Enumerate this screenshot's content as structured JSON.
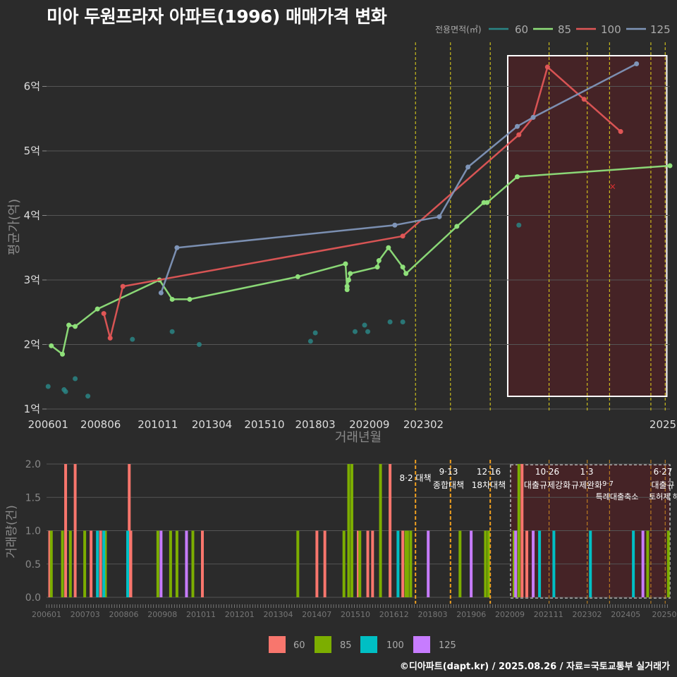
{
  "title": "미아 두원프라자 아파트(1996) 매매가격 변화",
  "credit": "©디아파트(dapt.kr) / 2025.08.26 / 자료=국토교통부 실거래가",
  "legend_top": {
    "title": "전용면적(㎡)",
    "items": [
      "60",
      "85",
      "100",
      "125"
    ]
  },
  "legend_bottom": {
    "items": [
      "60",
      "85",
      "100",
      "125"
    ]
  },
  "colors": {
    "s60": "#2a8585",
    "s85": "#8fe07a",
    "s100": "#e05656",
    "s125": "#7f95b8",
    "b60": "#f8766d",
    "b85": "#7cae00",
    "b100": "#00bfc4",
    "b125": "#c77cff",
    "highlight": "#4a2226",
    "grid": "#555555",
    "policy": "#e8d81a"
  },
  "chart_data": [
    {
      "type": "line",
      "title": "미아 두원프라자 아파트(1996) 매매가격 변화",
      "xlabel": "거래년월",
      "ylabel": "평균가(억)",
      "x_ticks": [
        "200601",
        "200806",
        "201011",
        "201304",
        "201510",
        "201803",
        "202009",
        "202302",
        "2025"
      ],
      "y_ticks": [
        "1억",
        "2억",
        "3억",
        "4억",
        "5억",
        "6억"
      ],
      "ylim": [
        1,
        6.5
      ],
      "x_range": [
        2006.0,
        2025.6
      ],
      "highlight_range": [
        2020.5,
        2025.5
      ],
      "policy_lines": [
        2017.6,
        2018.7,
        2019.95,
        2021.8,
        2023.0,
        2023.7,
        2025.0,
        2025.45
      ],
      "series": [
        {
          "name": "60",
          "mode": "points",
          "points": [
            [
              2006.05,
              1.35
            ],
            [
              2006.55,
              1.3
            ],
            [
              2006.6,
              1.27
            ],
            [
              2006.9,
              1.47
            ],
            [
              2007.3,
              1.2
            ],
            [
              2008.7,
              2.08
            ],
            [
              2009.95,
              2.2
            ],
            [
              2010.8,
              2.0
            ],
            [
              2014.3,
              2.05
            ],
            [
              2014.45,
              2.18
            ],
            [
              2015.7,
              2.2
            ],
            [
              2016.0,
              2.3
            ],
            [
              2016.1,
              2.2
            ],
            [
              2016.8,
              2.35
            ],
            [
              2017.2,
              2.35
            ],
            [
              2020.85,
              3.85
            ]
          ]
        },
        {
          "name": "85",
          "mode": "line",
          "points": [
            [
              2006.15,
              1.98
            ],
            [
              2006.5,
              1.85
            ],
            [
              2006.7,
              2.3
            ],
            [
              2006.9,
              2.28
            ],
            [
              2007.6,
              2.55
            ],
            [
              2009.55,
              3.0
            ],
            [
              2009.95,
              2.7
            ],
            [
              2010.5,
              2.7
            ],
            [
              2013.9,
              3.05
            ],
            [
              2015.4,
              3.25
            ],
            [
              2015.45,
              2.85
            ],
            [
              2015.45,
              2.9
            ],
            [
              2015.5,
              3.0
            ],
            [
              2015.55,
              3.1
            ],
            [
              2016.4,
              3.2
            ],
            [
              2016.45,
              3.3
            ],
            [
              2016.75,
              3.5
            ],
            [
              2017.2,
              3.2
            ],
            [
              2017.3,
              3.1
            ],
            [
              2018.9,
              3.83
            ],
            [
              2019.75,
              4.2
            ],
            [
              2019.85,
              4.2
            ],
            [
              2020.8,
              4.6
            ],
            [
              2025.6,
              4.77
            ]
          ]
        },
        {
          "name": "100",
          "mode": "line",
          "points": [
            [
              2007.8,
              2.48
            ],
            [
              2008.0,
              2.1
            ],
            [
              2008.4,
              2.9
            ],
            [
              2017.2,
              3.68
            ],
            [
              2020.85,
              5.25
            ],
            [
              2021.3,
              5.52
            ],
            [
              2021.75,
              6.3
            ],
            [
              2022.9,
              5.8
            ],
            [
              2024.05,
              5.3
            ]
          ]
        },
        {
          "name": "125",
          "mode": "line",
          "points": [
            [
              2009.6,
              2.8
            ],
            [
              2010.1,
              3.5
            ],
            [
              2016.95,
              3.85
            ],
            [
              2018.35,
              3.98
            ],
            [
              2019.25,
              4.75
            ],
            [
              2020.8,
              5.38
            ],
            [
              2021.3,
              5.52
            ],
            [
              2024.55,
              6.35
            ]
          ]
        }
      ],
      "annotation": {
        "label": "×",
        "x": 2023.8,
        "y": 4.45
      }
    },
    {
      "type": "bar",
      "ylabel": "거래량(건)",
      "x_ticks": [
        "200601",
        "200703",
        "200806",
        "200908",
        "201011",
        "201201",
        "201304",
        "201407",
        "201510",
        "201612",
        "201803",
        "201906",
        "202009",
        "202111",
        "202302",
        "202405",
        "20250"
      ],
      "y_ticks": [
        "0.0",
        "0.5",
        "1.0",
        "1.5",
        "2.0"
      ],
      "ylim": [
        0,
        2.0
      ],
      "policy_lines": [
        {
          "x": 2017.6,
          "date": "",
          "label": "8·2 대책"
        },
        {
          "x": 2018.7,
          "date": "9·13",
          "label": "종합대책"
        },
        {
          "x": 2019.95,
          "date": "12·16",
          "label": "18차대책"
        },
        {
          "x": 2021.8,
          "date": "10·26",
          "label": "대출규제강화"
        },
        {
          "x": 2023.0,
          "date": "1·3",
          "label": "규제완화"
        },
        {
          "x": 2023.7,
          "date": "",
          "label": "9·7 특례대출축소"
        },
        {
          "x": 2025.0,
          "date": "",
          "label": "토허제 해제"
        },
        {
          "x": 2025.45,
          "date": "6·27",
          "label": "대출규"
        }
      ],
      "policy_texts": [
        "8·2 대책",
        "9·13",
        "종합대책",
        "12·16",
        "18차대책",
        "10·26",
        "대출규제강화",
        "1·3",
        "규제완화",
        "9·7",
        "특례대출축소",
        "토허제 해제",
        "6·27",
        "대출규"
      ],
      "bars": {
        "60": [
          [
            2006.1,
            1
          ],
          [
            2006.6,
            2
          ],
          [
            2006.9,
            2
          ],
          [
            2007.4,
            1
          ],
          [
            2007.7,
            1
          ],
          [
            2008.6,
            2
          ],
          [
            2008.65,
            1
          ],
          [
            2010.9,
            1
          ],
          [
            2014.5,
            1
          ],
          [
            2014.75,
            1
          ],
          [
            2015.8,
            1
          ],
          [
            2016.1,
            1
          ],
          [
            2016.25,
            1
          ],
          [
            2016.8,
            2
          ],
          [
            2017.2,
            1
          ],
          [
            2020.95,
            2
          ],
          [
            2021.1,
            1
          ]
        ],
        "85": [
          [
            2006.15,
            1
          ],
          [
            2006.5,
            1
          ],
          [
            2006.75,
            1
          ],
          [
            2007.2,
            1
          ],
          [
            2007.85,
            1
          ],
          [
            2009.5,
            1
          ],
          [
            2009.9,
            1
          ],
          [
            2010.1,
            1
          ],
          [
            2010.6,
            1
          ],
          [
            2013.9,
            1
          ],
          [
            2015.35,
            1
          ],
          [
            2015.5,
            2
          ],
          [
            2015.6,
            2
          ],
          [
            2015.85,
            1
          ],
          [
            2016.5,
            2
          ],
          [
            2017.3,
            1
          ],
          [
            2017.35,
            1
          ],
          [
            2017.45,
            1
          ],
          [
            2019.0,
            1
          ],
          [
            2019.8,
            1
          ],
          [
            2019.9,
            1
          ],
          [
            2020.7,
            1
          ],
          [
            2020.85,
            2
          ],
          [
            2024.9,
            1
          ],
          [
            2025.55,
            1
          ]
        ],
        "100": [
          [
            2007.6,
            1
          ],
          [
            2007.8,
            1
          ],
          [
            2008.55,
            1
          ],
          [
            2017.05,
            1
          ],
          [
            2021.5,
            1
          ],
          [
            2021.95,
            1
          ],
          [
            2023.1,
            1
          ],
          [
            2024.45,
            1
          ]
        ],
        "125": [
          [
            2009.6,
            1
          ],
          [
            2010.4,
            1
          ],
          [
            2018.0,
            1
          ],
          [
            2019.35,
            1
          ],
          [
            2020.75,
            1
          ],
          [
            2021.3,
            1
          ],
          [
            2024.75,
            1
          ]
        ]
      }
    }
  ]
}
